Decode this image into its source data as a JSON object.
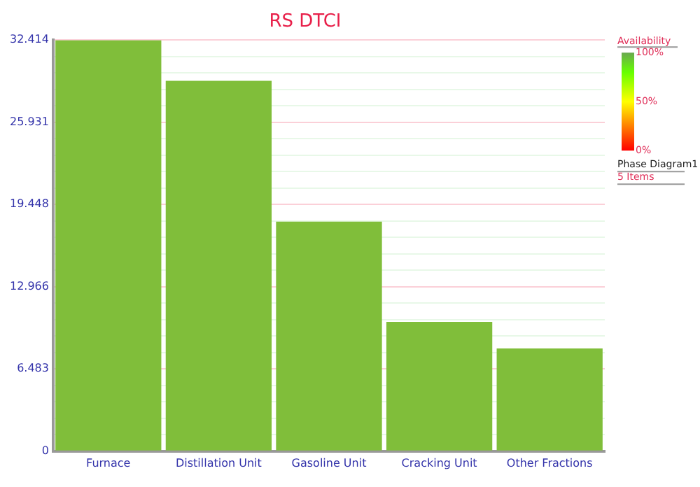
{
  "chart_data": {
    "type": "bar",
    "title": "RS DTCI",
    "categories": [
      "Furnace",
      "Distillation Unit",
      "Gasoline Unit",
      "Cracking Unit",
      "Other Fractions"
    ],
    "values": [
      32.4,
      29.2,
      18.1,
      10.2,
      8.1
    ],
    "color": "#80be3a",
    "ylim": [
      0,
      32.414
    ],
    "yticks": [
      0,
      {
        "value": 1.2966,
        "label": null
      },
      {
        "value": 2.5932,
        "label": null
      },
      {
        "value": 3.8898,
        "label": null
      },
      {
        "value": 5.1864,
        "label": null
      },
      6.483,
      {
        "value": 7.7796,
        "label": null
      },
      {
        "value": 9.0762,
        "label": null
      },
      {
        "value": 10.3728,
        "label": null
      },
      {
        "value": 11.6694,
        "label": null
      },
      12.966,
      {
        "value": 14.2626,
        "label": null
      },
      {
        "value": 15.5592,
        "label": null
      },
      {
        "value": 16.8558,
        "label": null
      },
      {
        "value": 18.1524,
        "label": null
      },
      19.448,
      {
        "value": 20.7456,
        "label": null
      },
      {
        "value": 22.0422,
        "label": null
      },
      {
        "value": 23.3388,
        "label": null
      },
      {
        "value": 24.6354,
        "label": null
      },
      25.931,
      {
        "value": 27.2286,
        "label": null
      },
      {
        "value": 28.5252,
        "label": null
      },
      {
        "value": 29.8218,
        "label": null
      },
      {
        "value": 31.1184,
        "label": null
      },
      32.414
    ],
    "grid": "y",
    "clabel": "Availability",
    "clim": [
      0,
      100
    ],
    "cticks": [
      {
        "value": 0,
        "label": "0%"
      },
      {
        "value": 50,
        "label": "50%"
      },
      {
        "value": 100,
        "label": "100%"
      }
    ],
    "annotations": [
      "Phase Diagram1",
      "5 Items"
    ]
  }
}
